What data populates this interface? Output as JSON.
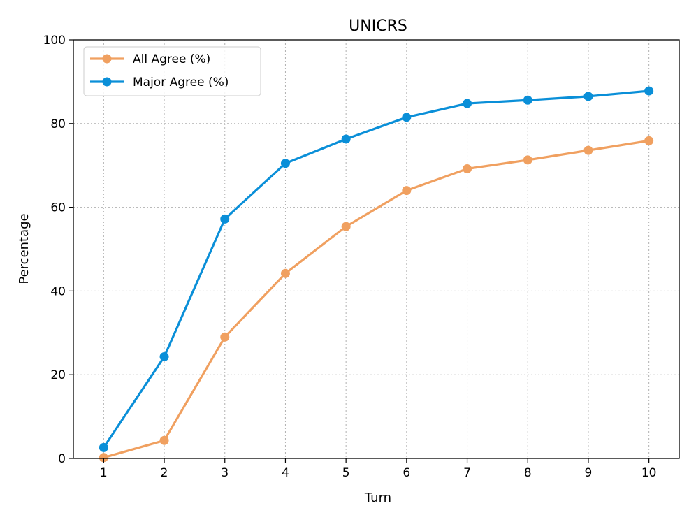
{
  "chart_data": {
    "type": "line",
    "title": "UNICRS",
    "xlabel": "Turn",
    "ylabel": "Percentage",
    "x": [
      1,
      2,
      3,
      4,
      5,
      6,
      7,
      8,
      9,
      10
    ],
    "xlim": [
      0.5,
      10.5
    ],
    "ylim": [
      0,
      100
    ],
    "xticks": [
      1,
      2,
      3,
      4,
      5,
      6,
      7,
      8,
      9,
      10
    ],
    "yticks": [
      0,
      20,
      40,
      60,
      80,
      100
    ],
    "grid": true,
    "legend_position": "top-left",
    "series": [
      {
        "name": "All Agree (%)",
        "color": "#f0a060",
        "values": [
          0.2,
          4.3,
          29.0,
          44.2,
          55.4,
          64.0,
          69.2,
          71.3,
          73.6,
          75.9
        ]
      },
      {
        "name": "Major Agree (%)",
        "color": "#0a8fd8",
        "values": [
          2.6,
          24.3,
          57.2,
          70.5,
          76.3,
          81.5,
          84.8,
          85.6,
          86.5,
          87.8
        ]
      }
    ]
  }
}
